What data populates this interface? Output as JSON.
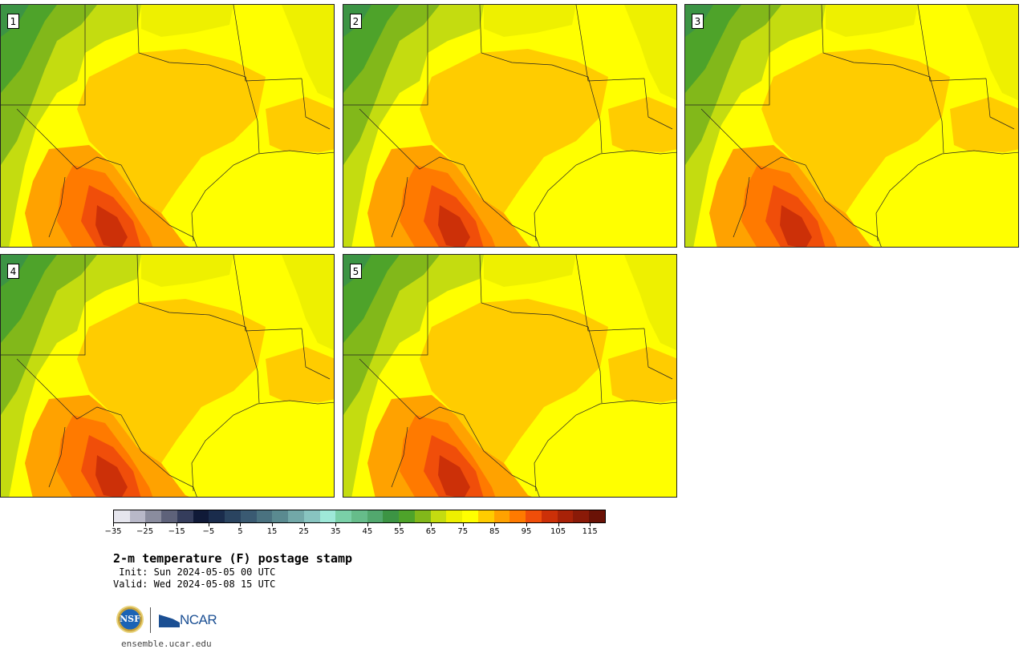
{
  "stamps": [
    {
      "label": "1"
    },
    {
      "label": "2"
    },
    {
      "label": "3"
    },
    {
      "label": "4"
    },
    {
      "label": "5"
    }
  ],
  "colorbar": {
    "colors": [
      "#e6e6ee",
      "#b8b8c8",
      "#8a8c9e",
      "#5e627a",
      "#353d5c",
      "#101a38",
      "#1a2c4c",
      "#2a4460",
      "#3a5a72",
      "#4a7280",
      "#5a8a90",
      "#72a8a8",
      "#88c4c0",
      "#9ee8d8",
      "#7ad0a8",
      "#66bc8a",
      "#52a86e",
      "#3c9444",
      "#4ea32a",
      "#82b81a",
      "#c4dc10",
      "#eef000",
      "#ffff00",
      "#ffcc00",
      "#ffa200",
      "#ff7a00",
      "#f04e0a",
      "#cc3008",
      "#a82208",
      "#8a1a08",
      "#6a1206"
    ],
    "tick_values": [
      "−35",
      "−25",
      "−15",
      "−5",
      "5",
      "15",
      "25",
      "35",
      "45",
      "55",
      "65",
      "75",
      "85",
      "95",
      "105",
      "115"
    ]
  },
  "title": "2-m temperature (F) postage stamp",
  "init": " Init: Sun 2024-05-05 00 UTC",
  "valid": "Valid: Wed 2024-05-08 15 UTC",
  "logos": {
    "nsf": "NSF",
    "ncar": "NCAR"
  },
  "url": "ensemble.ucar.edu"
}
